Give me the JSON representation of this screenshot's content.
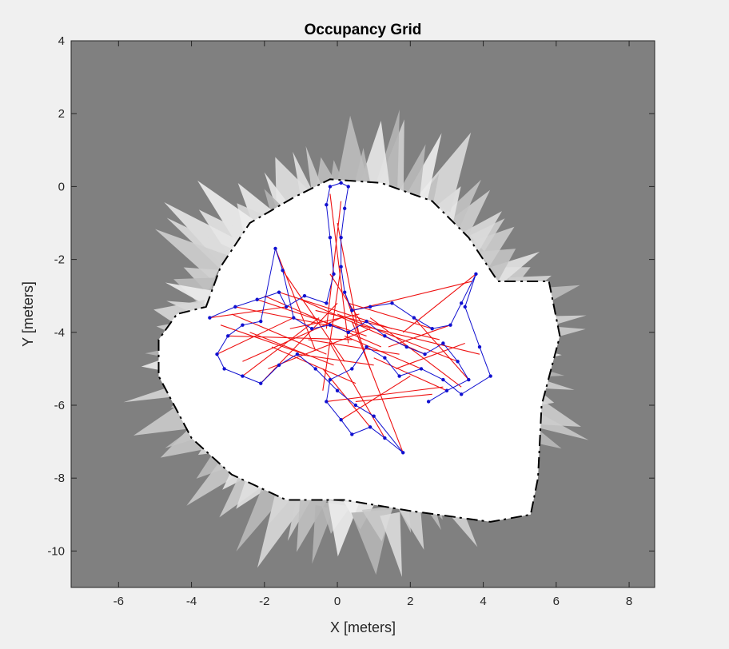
{
  "chart_data": {
    "type": "scatter",
    "title": "Occupancy Grid",
    "xlabel": "X [meters]",
    "ylabel": "Y [meters]",
    "xlim": [
      -7.3,
      8.7
    ],
    "ylim": [
      -11,
      4
    ],
    "xticks": [
      -6,
      -4,
      -2,
      0,
      2,
      4,
      6,
      8
    ],
    "yticks": [
      4,
      2,
      0,
      -2,
      -4,
      -6,
      -8,
      -10
    ],
    "grid": false,
    "colors": {
      "unknown": "#808080",
      "free": "#ffffff",
      "occupied": "#000000",
      "trajectory": "#1010d0",
      "loop_closures": "#ee1111"
    },
    "map_regions": {
      "free_space_polygon": [
        [
          -3.6,
          -3.3
        ],
        [
          -3.2,
          -2.2
        ],
        [
          -2.4,
          -1.0
        ],
        [
          -1.2,
          -0.3
        ],
        [
          -0.2,
          0.2
        ],
        [
          1.2,
          0.1
        ],
        [
          2.6,
          -0.4
        ],
        [
          3.6,
          -1.4
        ],
        [
          4.4,
          -2.6
        ],
        [
          5.8,
          -2.6
        ],
        [
          6.1,
          -4.1
        ],
        [
          5.6,
          -6.0
        ],
        [
          5.5,
          -8.0
        ],
        [
          5.3,
          -9.0
        ],
        [
          4.2,
          -9.2
        ],
        [
          2.0,
          -8.9
        ],
        [
          0.2,
          -8.6
        ],
        [
          -1.4,
          -8.6
        ],
        [
          -2.9,
          -7.9
        ],
        [
          -4.0,
          -6.9
        ],
        [
          -4.9,
          -5.2
        ],
        [
          -4.9,
          -4.2
        ],
        [
          -4.4,
          -3.5
        ]
      ]
    },
    "trajectory": [
      [
        -3.5,
        -3.6
      ],
      [
        -2.8,
        -3.3
      ],
      [
        -2.2,
        -3.1
      ],
      [
        -1.6,
        -2.9
      ],
      [
        -1.4,
        -3.3
      ],
      [
        -0.9,
        -3.0
      ],
      [
        -0.3,
        -3.2
      ],
      [
        -0.1,
        -2.4
      ],
      [
        -0.2,
        -1.4
      ],
      [
        -0.3,
        -0.5
      ],
      [
        -0.2,
        0.0
      ],
      [
        0.1,
        0.1
      ],
      [
        0.3,
        0.0
      ],
      [
        0.2,
        -0.6
      ],
      [
        0.1,
        -1.4
      ],
      [
        0.1,
        -2.2
      ],
      [
        0.2,
        -2.9
      ],
      [
        0.4,
        -3.4
      ],
      [
        0.9,
        -3.3
      ],
      [
        1.5,
        -3.2
      ],
      [
        2.1,
        -3.6
      ],
      [
        2.6,
        -3.9
      ],
      [
        3.1,
        -3.8
      ],
      [
        3.4,
        -3.2
      ],
      [
        3.8,
        -2.4
      ],
      [
        3.5,
        -3.3
      ],
      [
        3.9,
        -4.4
      ],
      [
        4.2,
        -5.2
      ],
      [
        3.4,
        -5.7
      ],
      [
        2.9,
        -5.3
      ],
      [
        2.3,
        -5.0
      ],
      [
        1.7,
        -5.2
      ],
      [
        1.3,
        -4.7
      ],
      [
        0.8,
        -4.4
      ],
      [
        0.4,
        -5.0
      ],
      [
        -0.2,
        -5.3
      ],
      [
        -0.3,
        -5.9
      ],
      [
        0.1,
        -6.4
      ],
      [
        0.4,
        -6.8
      ],
      [
        0.9,
        -6.6
      ],
      [
        1.3,
        -6.9
      ],
      [
        1.8,
        -7.3
      ],
      [
        1.0,
        -6.3
      ],
      [
        0.5,
        -6.0
      ],
      [
        0.0,
        -5.6
      ],
      [
        -0.6,
        -5.0
      ],
      [
        -1.1,
        -4.6
      ],
      [
        -1.6,
        -4.9
      ],
      [
        -2.1,
        -5.4
      ],
      [
        -2.6,
        -5.2
      ],
      [
        -3.1,
        -5.0
      ],
      [
        -3.3,
        -4.6
      ],
      [
        -3.0,
        -4.1
      ],
      [
        -2.6,
        -3.8
      ],
      [
        -2.1,
        -3.7
      ],
      [
        -1.7,
        -1.7
      ],
      [
        -1.5,
        -2.3
      ],
      [
        -1.2,
        -3.6
      ],
      [
        -0.7,
        -3.9
      ],
      [
        -0.2,
        -3.8
      ],
      [
        0.3,
        -4.0
      ],
      [
        0.8,
        -3.7
      ],
      [
        1.3,
        -4.1
      ],
      [
        1.9,
        -4.4
      ],
      [
        2.4,
        -4.6
      ],
      [
        2.9,
        -4.3
      ],
      [
        3.3,
        -4.8
      ],
      [
        3.6,
        -5.3
      ],
      [
        3.0,
        -5.6
      ],
      [
        2.5,
        -5.9
      ]
    ],
    "loop_closures": [
      [
        [
          -3.5,
          -3.6
        ],
        [
          -1.4,
          -3.3
        ]
      ],
      [
        [
          -3.2,
          -3.8
        ],
        [
          -0.9,
          -4.6
        ]
      ],
      [
        [
          -2.8,
          -3.3
        ],
        [
          0.2,
          -3.9
        ]
      ],
      [
        [
          -2.2,
          -3.1
        ],
        [
          0.8,
          -4.1
        ]
      ],
      [
        [
          -1.6,
          -2.9
        ],
        [
          1.5,
          -3.9
        ]
      ],
      [
        [
          -2.6,
          -4.8
        ],
        [
          0.1,
          -3.6
        ]
      ],
      [
        [
          -3.0,
          -4.1
        ],
        [
          0.4,
          -4.2
        ]
      ],
      [
        [
          -2.1,
          -5.4
        ],
        [
          0.0,
          -3.2
        ]
      ],
      [
        [
          -1.7,
          -1.7
        ],
        [
          -0.6,
          -4.5
        ]
      ],
      [
        [
          -1.5,
          -2.3
        ],
        [
          0.2,
          -4.8
        ]
      ],
      [
        [
          -0.2,
          -0.2
        ],
        [
          0.3,
          -4.3
        ]
      ],
      [
        [
          0.1,
          -0.4
        ],
        [
          -0.3,
          -3.9
        ]
      ],
      [
        [
          0.0,
          -1.0
        ],
        [
          0.6,
          -4.1
        ]
      ],
      [
        [
          0.1,
          -2.2
        ],
        [
          -0.4,
          -5.6
        ]
      ],
      [
        [
          0.2,
          -2.9
        ],
        [
          0.9,
          -5.0
        ]
      ],
      [
        [
          0.4,
          -3.4
        ],
        [
          3.7,
          -2.6
        ]
      ],
      [
        [
          0.6,
          -3.8
        ],
        [
          3.9,
          -4.6
        ]
      ],
      [
        [
          0.9,
          -3.6
        ],
        [
          3.4,
          -5.5
        ]
      ],
      [
        [
          1.4,
          -4.4
        ],
        [
          3.1,
          -3.8
        ]
      ],
      [
        [
          1.8,
          -4.0
        ],
        [
          3.8,
          -2.4
        ]
      ],
      [
        [
          2.1,
          -3.6
        ],
        [
          3.6,
          -5.3
        ]
      ],
      [
        [
          0.2,
          -4.1
        ],
        [
          2.3,
          -5.0
        ]
      ],
      [
        [
          0.4,
          -3.7
        ],
        [
          1.8,
          -7.3
        ]
      ],
      [
        [
          -0.2,
          -4.3
        ],
        [
          1.3,
          -6.9
        ]
      ],
      [
        [
          -0.4,
          -5.0
        ],
        [
          0.9,
          -6.6
        ]
      ],
      [
        [
          0.1,
          -6.4
        ],
        [
          2.0,
          -5.2
        ]
      ],
      [
        [
          -0.3,
          -5.9
        ],
        [
          2.9,
          -5.5
        ]
      ],
      [
        [
          -1.1,
          -4.6
        ],
        [
          1.0,
          -4.9
        ]
      ],
      [
        [
          -2.6,
          -5.2
        ],
        [
          -0.5,
          -3.6
        ]
      ],
      [
        [
          -3.3,
          -4.6
        ],
        [
          -1.2,
          -3.6
        ]
      ],
      [
        [
          -2.0,
          -3.0
        ],
        [
          1.2,
          -4.4
        ]
      ],
      [
        [
          -1.0,
          -3.1
        ],
        [
          2.4,
          -4.6
        ]
      ],
      [
        [
          -0.6,
          -3.4
        ],
        [
          2.8,
          -4.2
        ]
      ],
      [
        [
          0.0,
          -3.5
        ],
        [
          3.3,
          -4.8
        ]
      ],
      [
        [
          0.3,
          -3.2
        ],
        [
          2.6,
          -3.9
        ]
      ],
      [
        [
          -0.8,
          -4.2
        ],
        [
          1.7,
          -4.6
        ]
      ],
      [
        [
          -1.8,
          -4.4
        ],
        [
          0.5,
          -5.4
        ]
      ],
      [
        [
          -2.4,
          -4.0
        ],
        [
          -0.1,
          -4.9
        ]
      ],
      [
        [
          -0.2,
          -2.4
        ],
        [
          0.7,
          -3.8
        ]
      ],
      [
        [
          1.0,
          -4.7
        ],
        [
          3.0,
          -5.6
        ]
      ],
      [
        [
          1.6,
          -5.0
        ],
        [
          3.5,
          -4.3
        ]
      ],
      [
        [
          0.5,
          -5.9
        ],
        [
          2.6,
          -5.7
        ]
      ],
      [
        [
          -1.3,
          -3.9
        ],
        [
          0.6,
          -3.5
        ]
      ],
      [
        [
          -2.9,
          -3.5
        ],
        [
          -0.3,
          -4.6
        ]
      ],
      [
        [
          -1.9,
          -5.0
        ],
        [
          0.9,
          -3.9
        ]
      ]
    ]
  }
}
